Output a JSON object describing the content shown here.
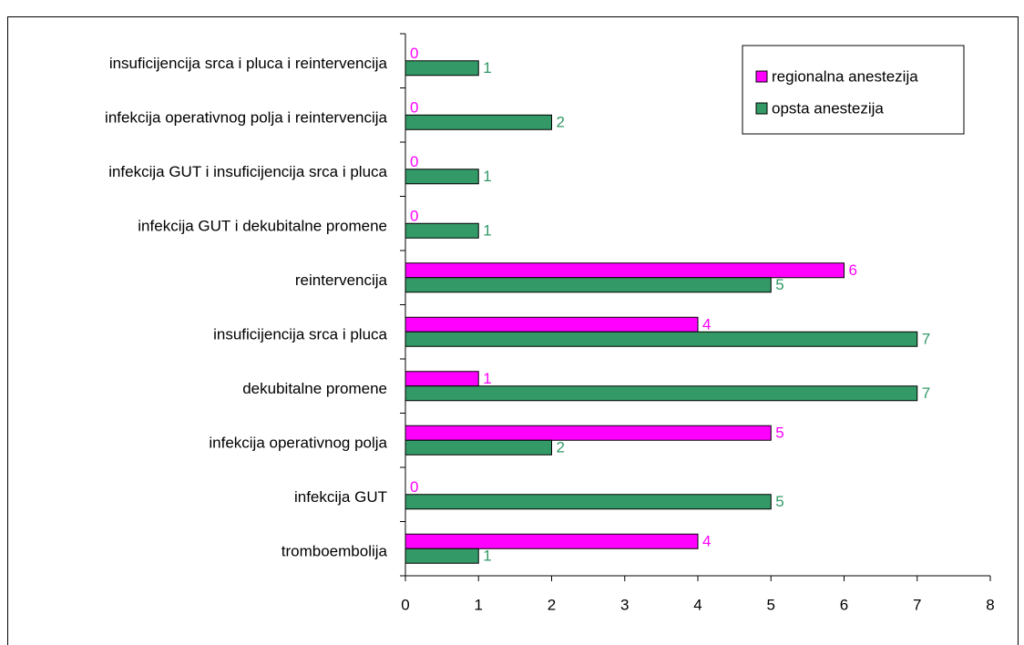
{
  "chart_data": {
    "type": "bar",
    "orientation": "horizontal",
    "categories": [
      "tromboembolija",
      "infekcija GUT",
      "infekcija operativnog polja",
      "dekubitalne promene",
      "insuficijencija srca i pluca",
      "reintervencija",
      "infekcija GUT i dekubitalne promene",
      "infekcija GUT i insuficijencija srca i pluca",
      "infekcija operativnog polja i reintervencija",
      "insuficijencija srca i pluca i reintervencija"
    ],
    "series": [
      {
        "name": "regionalna anestezija",
        "color": "#ff00ff",
        "values": [
          4,
          0,
          5,
          1,
          4,
          6,
          0,
          0,
          0,
          0
        ]
      },
      {
        "name": "opsta anestezija",
        "color": "#339966",
        "values": [
          1,
          5,
          2,
          7,
          7,
          5,
          1,
          1,
          2,
          1
        ]
      }
    ],
    "xlim": [
      0,
      8
    ],
    "xticks": [
      0,
      1,
      2,
      3,
      4,
      5,
      6,
      7,
      8
    ],
    "legend": "upper right"
  }
}
